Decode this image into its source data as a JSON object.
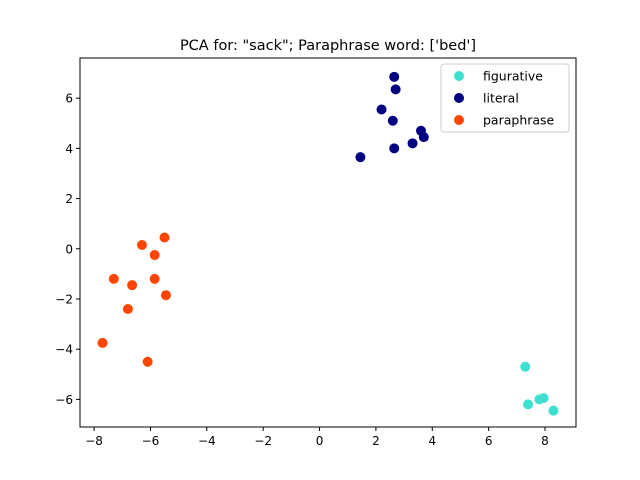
{
  "chart_data": {
    "type": "scatter",
    "title": "PCA for: \"sack\"; Paraphrase word: ['bed']",
    "xlabel": "",
    "ylabel": "",
    "xlim": [
      -8.5,
      9.1
    ],
    "ylim": [
      -7.1,
      7.6
    ],
    "xticks": [
      -8,
      -6,
      -4,
      -2,
      0,
      2,
      4,
      6,
      8
    ],
    "yticks": [
      -6,
      -4,
      -2,
      0,
      2,
      4,
      6
    ],
    "grid": false,
    "legend_position": "top-right",
    "series": [
      {
        "name": "figurative",
        "color": "#40e0d0",
        "points": [
          [
            7.3,
            -4.7
          ],
          [
            7.4,
            -6.2
          ],
          [
            7.8,
            -6.0
          ],
          [
            7.95,
            -5.95
          ],
          [
            8.3,
            -6.45
          ]
        ]
      },
      {
        "name": "literal",
        "color": "#000080",
        "points": [
          [
            2.65,
            6.85
          ],
          [
            2.7,
            6.35
          ],
          [
            2.2,
            5.55
          ],
          [
            2.6,
            5.1
          ],
          [
            3.6,
            4.7
          ],
          [
            3.7,
            4.45
          ],
          [
            3.3,
            4.2
          ],
          [
            2.65,
            4.0
          ],
          [
            1.45,
            3.65
          ]
        ]
      },
      {
        "name": "paraphrase",
        "color": "#ff4500",
        "points": [
          [
            -6.3,
            0.15
          ],
          [
            -5.5,
            0.45
          ],
          [
            -5.85,
            -0.25
          ],
          [
            -7.3,
            -1.2
          ],
          [
            -5.85,
            -1.2
          ],
          [
            -6.65,
            -1.45
          ],
          [
            -5.45,
            -1.85
          ],
          [
            -6.8,
            -2.4
          ],
          [
            -7.7,
            -3.75
          ],
          [
            -6.1,
            -4.5
          ]
        ]
      }
    ]
  }
}
